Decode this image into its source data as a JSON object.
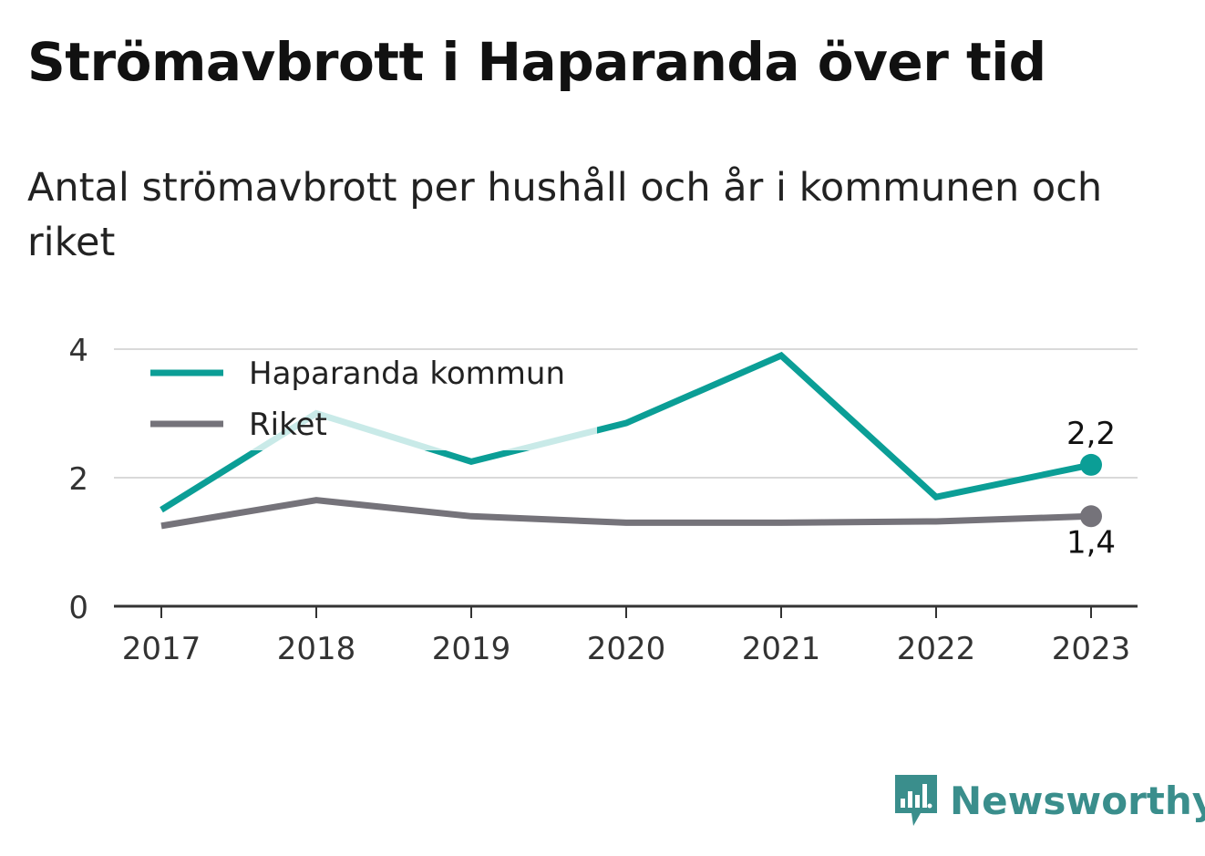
{
  "header": {
    "title": "Strömavbrott i Haparanda över tid",
    "subtitle": "Antal strömavbrott per hushåll och år i kommunen och riket"
  },
  "brand": {
    "name": "Newsworthy",
    "icon": "newsworthy-logo-icon"
  },
  "colors": {
    "kommun": "#0b9e96",
    "riket": "#75737a",
    "grid": "#d9d9d9",
    "axis": "#333333",
    "brand": "#3a8e8c"
  },
  "chart_data": {
    "type": "line",
    "x": [
      "2017",
      "2018",
      "2019",
      "2020",
      "2021",
      "2022",
      "2023"
    ],
    "series": [
      {
        "name": "Haparanda kommun",
        "values": [
          1.5,
          3.0,
          2.25,
          2.85,
          3.9,
          1.7,
          2.2
        ],
        "end_label": "2,2"
      },
      {
        "name": "Riket",
        "values": [
          1.25,
          1.65,
          1.4,
          1.3,
          1.3,
          1.32,
          1.4
        ],
        "end_label": "1,4"
      }
    ],
    "yticks": [
      "0",
      "2",
      "4"
    ],
    "ylim": [
      0,
      4
    ],
    "legend": "top-left",
    "grid": true
  }
}
